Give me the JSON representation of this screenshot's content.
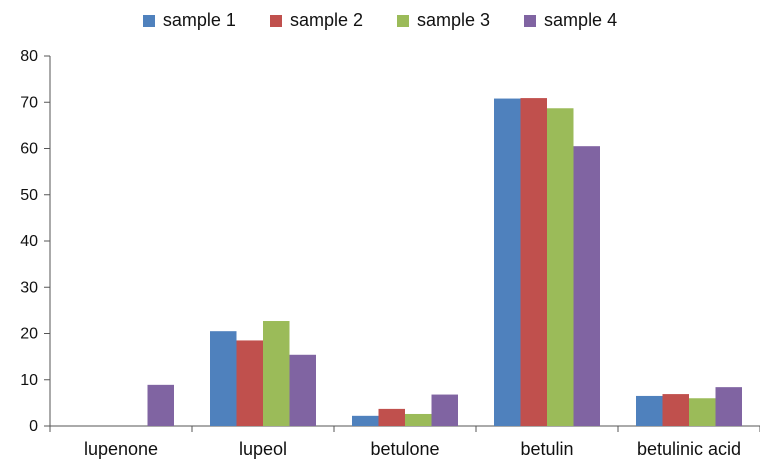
{
  "chart_data": {
    "type": "bar",
    "categories": [
      "lupenone",
      "lupeol",
      "betulone",
      "betulin",
      "betulinic acid"
    ],
    "series": [
      {
        "name": "sample 1",
        "color": "#4f81bd",
        "values": [
          0,
          20.5,
          2.2,
          70.8,
          6.5
        ]
      },
      {
        "name": "sample 2",
        "color": "#c0504d",
        "values": [
          0,
          18.5,
          3.7,
          70.9,
          6.9
        ]
      },
      {
        "name": "sample 3",
        "color": "#9bbb59",
        "values": [
          0,
          22.7,
          2.6,
          68.7,
          6.0
        ]
      },
      {
        "name": "sample 4",
        "color": "#8064a2",
        "values": [
          8.9,
          15.4,
          6.8,
          60.5,
          8.4
        ]
      }
    ],
    "title": "",
    "xlabel": "",
    "ylabel": "",
    "ylim": [
      0,
      80
    ],
    "yticks": [
      "0",
      "10",
      "20",
      "30",
      "40",
      "50",
      "60",
      "70",
      "80"
    ],
    "grid": false,
    "legend_position": "top"
  }
}
